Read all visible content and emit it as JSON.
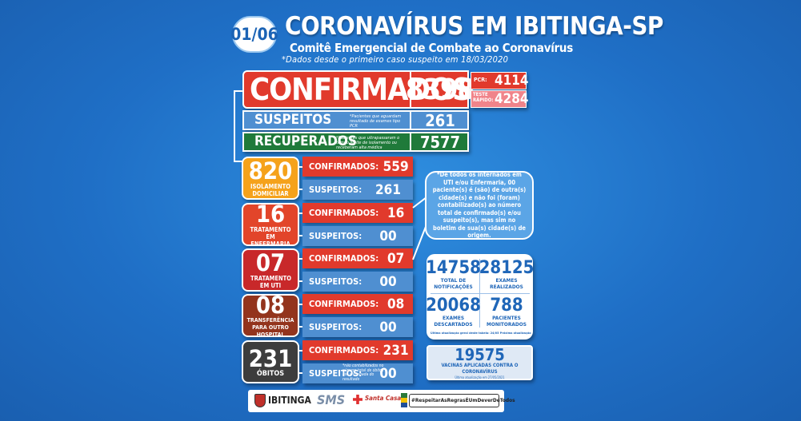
{
  "header": {
    "date": "01/06",
    "title": "CORONAVÍRUS EM IBITINGA-SP",
    "subtitle": "Comitê Emergencial de Combate ao Coronavírus",
    "note": "*Dados desde o primeiro caso suspeito em 18/03/2020"
  },
  "confirmados": {
    "label": "CONFIRMADOS",
    "value": "8398",
    "pcr_label": "PCR:",
    "pcr_value": "4114",
    "rapido_label": "TESTE RÁPIDO:",
    "rapido_value": "4284"
  },
  "suspeitos": {
    "label": "SUSPEITOS",
    "note": "*Pacientes que aguardam resultado de exames tipo PCR",
    "value": "261"
  },
  "recuperados": {
    "label": "RECUPERADOS",
    "note": "*Pacientes que ultrapassaram o tempo limite de isolamento ou receberam alta médica",
    "value": "7577"
  },
  "cards": [
    {
      "big": "820",
      "small": "ISOLAMENTO DOMICILIAR",
      "color": "#f5a21b",
      "confirmados_label": "CONFIRMADOS:",
      "confirmados": "559",
      "suspeitos_label": "SUSPEITOS:",
      "suspeitos": "261"
    },
    {
      "big": "16",
      "small": "TRATAMENTO EM ENFERMARIA",
      "color": "#e2452a",
      "confirmados_label": "CONFIRMADOS:",
      "confirmados": "16",
      "suspeitos_label": "SUSPEITOS:",
      "suspeitos": "00"
    },
    {
      "big": "07",
      "small": "TRATAMENTO EM UTI",
      "color": "#c8282a",
      "confirmados_label": "CONFIRMADOS:",
      "confirmados": "07",
      "suspeitos_label": "SUSPEITOS:",
      "suspeitos": "00"
    },
    {
      "big": "08",
      "small": "TRANSFERÊNCIA PARA OUTRO HOSPITAL",
      "color": "#93341d",
      "confirmados_label": "CONFIRMADOS:",
      "confirmados": "08",
      "suspeitos_label": "SUSPEITOS:",
      "suspeitos": "00"
    },
    {
      "big": "231",
      "small": "ÓBITOS",
      "color": "#3d3d3d",
      "confirmados_label": "CONFIRMADOS:",
      "confirmados": "231",
      "suspeitos_label": "SUSPEITOS:",
      "suspeitos": "00",
      "suspeitos_note": "*não contabilizados no número total de óbitos até a chegada do resultado"
    }
  ],
  "bubble": "*De todos os internados em UTI e/ou Enfermaria, 00 paciente(s) é (são) de outra(s) cidade(s) e não foi (foram) contabilizado(s) ao número total de confirmado(s) e/ou suspeito(s), mas sim no boletim de sua(s) cidade(s) de origem.",
  "stats": {
    "notificacoes": "14758",
    "notificacoes_label": "TOTAL DE NOTIFICAÇÕES",
    "exames_realizados": "28125",
    "exames_realizados_label": "EXAMES REALIZADOS",
    "exames_descartados": "20068",
    "exames_descartados_label": "EXAMES DESCARTADOS",
    "monitorados": "788",
    "monitorados_label": "PACIENTES MONITORADOS",
    "update_note": "Última atualização geral deste tabela: 24/05 Próxima atualização 31/05"
  },
  "vacinas": {
    "value": "19575",
    "label": "VACINAS APLICADAS CONTRA O CORONAVÍRUS",
    "note": "Última atualização em 27/05/2021"
  },
  "footer": {
    "ibitinga": "IBITINGA",
    "saude": "SMS",
    "santa_casa": "Santa Casa",
    "hashtag": "#RespeitarAsRegrasÉUmDeverDeTodos"
  },
  "colors": {
    "red": "#e13a2c",
    "blue": "#4f8fd1",
    "green": "#1f7a3a",
    "pink": "#f0848a"
  }
}
